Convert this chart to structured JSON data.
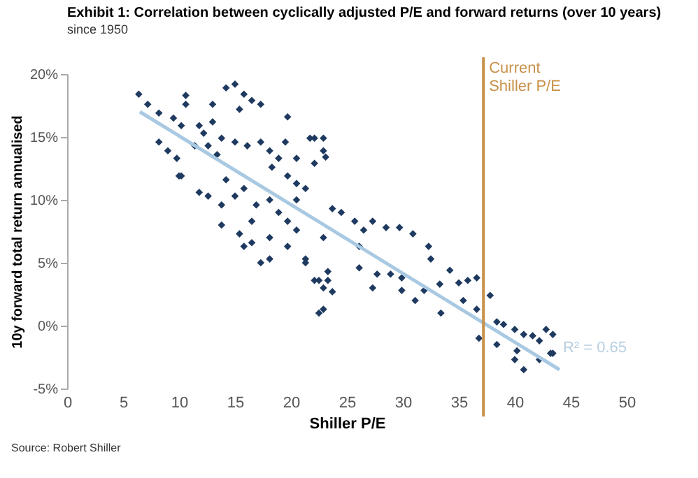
{
  "chart_data": {
    "type": "scatter",
    "title": "Exhibit 1: Correlation between cyclically adjusted P/E and forward returns (over 10 years)",
    "subtitle": "since 1950",
    "xlabel": "Shiller P/E",
    "ylabel": "10y forward total return annualised",
    "xlim": [
      0,
      50
    ],
    "xticks": [
      0,
      5,
      10,
      15,
      20,
      25,
      30,
      35,
      40,
      45,
      50
    ],
    "ylim": [
      -5,
      20
    ],
    "yticks": [
      {
        "value": -5,
        "label": "-5%"
      },
      {
        "value": 0,
        "label": "0%"
      },
      {
        "value": 5,
        "label": "5%"
      },
      {
        "value": 10,
        "label": "10%"
      },
      {
        "value": 15,
        "label": "15%"
      },
      {
        "value": 20,
        "label": "20%"
      }
    ],
    "grid": false,
    "marker": "diamond",
    "series": [
      {
        "color": "#1f3a60",
        "x": [
          6.4,
          7.2,
          8.2,
          8.2,
          9.0,
          9.8,
          10.2,
          10.2,
          9.5,
          10.6,
          10.6,
          11.8,
          12.2,
          11.4,
          12.6,
          13.4,
          13.0,
          14.2,
          15.0,
          15.8,
          16.5,
          17.3,
          15.4,
          13.0,
          13.8,
          15.0,
          16.1,
          17.3,
          18.1,
          18.3,
          19.7,
          19.5,
          20.5,
          21.7,
          22.9,
          23.1,
          11.8,
          12.6,
          13.8,
          13.8,
          14.2,
          15.0,
          15.8,
          15.4,
          15.8,
          16.5,
          16.9,
          16.5,
          17.3,
          18.1,
          18.1,
          18.1,
          18.9,
          19.7,
          19.7,
          20.5,
          20.5,
          21.3,
          21.3,
          22.1,
          22.9,
          22.9,
          22.5,
          23.3,
          23.7,
          22.9,
          23.7,
          19.7,
          18.9,
          22.1,
          20.5,
          10.0,
          22.1,
          22.9,
          24.5,
          25.7,
          26.5,
          27.3,
          28.5,
          29.7,
          30.9,
          26.1,
          21.3,
          22.5,
          23.3,
          26.1,
          27.7,
          28.9,
          27.3,
          29.9,
          29.9,
          31.1,
          31.9,
          32.3,
          32.5,
          33.3,
          34.2,
          35.0,
          35.4,
          35.8,
          36.6,
          36.6,
          33.4,
          37.8,
          36.8,
          38.4,
          39.0,
          38.4,
          40.0,
          40.2,
          40.8,
          41.6,
          42.8,
          43.4,
          42.2,
          42.2,
          43.4,
          40.0,
          40.8,
          43.2
        ],
        "values": [
          18.4,
          17.6,
          16.9,
          14.6,
          13.9,
          13.3,
          11.9,
          15.9,
          16.5,
          17.6,
          18.3,
          15.9,
          15.3,
          14.3,
          14.3,
          13.6,
          16.2,
          18.9,
          19.2,
          18.4,
          17.9,
          17.6,
          17.2,
          17.6,
          14.9,
          14.6,
          14.3,
          14.6,
          13.9,
          12.6,
          16.6,
          14.6,
          13.3,
          14.9,
          14.9,
          13.4,
          10.6,
          10.3,
          9.6,
          8.0,
          11.6,
          10.3,
          10.9,
          7.3,
          6.3,
          8.3,
          9.6,
          6.6,
          5.0,
          5.3,
          7.0,
          10.0,
          9.0,
          8.3,
          6.3,
          7.6,
          10.0,
          10.9,
          5.3,
          3.6,
          3.0,
          1.3,
          1.0,
          4.3,
          2.7,
          7.0,
          9.3,
          11.9,
          13.3,
          12.9,
          11.3,
          11.9,
          14.9,
          13.9,
          9.0,
          8.3,
          7.6,
          8.3,
          7.8,
          7.8,
          7.3,
          6.3,
          5.0,
          3.6,
          3.6,
          4.6,
          4.1,
          4.1,
          3.0,
          3.8,
          2.8,
          2.0,
          2.8,
          6.3,
          5.3,
          3.3,
          4.4,
          3.4,
          2.0,
          3.6,
          3.8,
          1.3,
          1.0,
          2.4,
          -1.0,
          0.3,
          0.1,
          -1.5,
          -0.3,
          -2.0,
          -0.7,
          -0.8,
          -0.3,
          -0.7,
          -1.2,
          -2.7,
          -2.2,
          -2.7,
          -3.5,
          -2.2
        ]
      },
      {
        "type": "line",
        "color": "#a9c9e2",
        "x": [
          6.5,
          44
        ],
        "values": [
          17,
          -3.5
        ],
        "marker": "none"
      }
    ],
    "ref_lines": [
      {
        "axis": "x",
        "value": 37.2,
        "label": "Current Shiller P/E",
        "color": "#c8914a"
      }
    ],
    "annotations": [
      "R² = 0.65",
      "Source: Robert Shiller"
    ]
  }
}
